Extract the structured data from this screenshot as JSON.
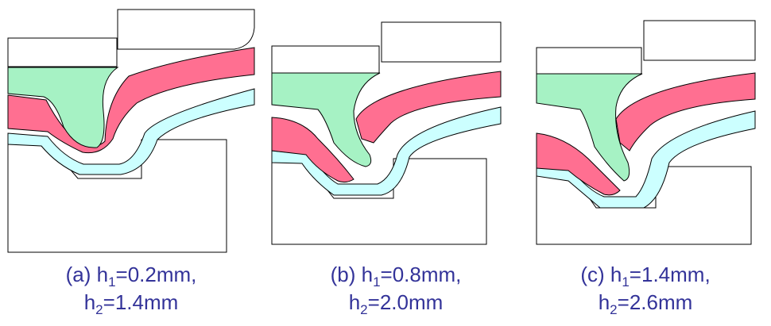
{
  "panels": [
    {
      "line1": [
        "(a) h",
        "1",
        "=0.2mm,"
      ],
      "line2": [
        "h",
        "2",
        "=1.4mm"
      ]
    },
    {
      "line1": [
        "(b) h",
        "1",
        "=0.8mm,"
      ],
      "line2": [
        "h",
        "2",
        "=2.0mm"
      ]
    },
    {
      "line1": [
        "(c) h",
        "1",
        "=1.4mm,"
      ],
      "line2": [
        "h",
        "2",
        "=2.6mm"
      ]
    }
  ]
}
